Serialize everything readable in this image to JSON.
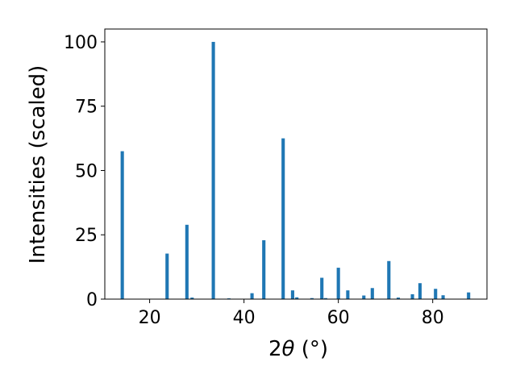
{
  "chart_data": {
    "type": "bar",
    "xlabel_prefix": "2",
    "xlabel_symbol": "θ",
    "xlabel_unit": " (°)",
    "ylabel": "Intensities (scaled)",
    "xlim": [
      10.5,
      91.5
    ],
    "ylim": [
      0,
      105
    ],
    "xticks": [
      20,
      40,
      60,
      80
    ],
    "yticks": [
      0,
      25,
      50,
      75,
      100
    ],
    "grid": false,
    "bar_color": "#1f77b4",
    "bar_width": 0.7,
    "x": [
      14.2,
      23.7,
      27.9,
      29.0,
      33.5,
      36.8,
      41.7,
      44.2,
      48.3,
      50.3,
      51.2,
      54.4,
      56.5,
      57.3,
      60.0,
      62.0,
      65.4,
      67.2,
      70.7,
      72.7,
      75.7,
      77.3,
      80.6,
      82.2,
      87.6
    ],
    "y": [
      57.5,
      17.7,
      28.9,
      0.6,
      100.0,
      0.3,
      2.3,
      22.9,
      62.5,
      3.4,
      0.7,
      0.4,
      8.3,
      0.4,
      12.2,
      3.4,
      1.4,
      4.3,
      14.8,
      0.6,
      1.9,
      6.2,
      4.0,
      1.5,
      2.6
    ]
  }
}
